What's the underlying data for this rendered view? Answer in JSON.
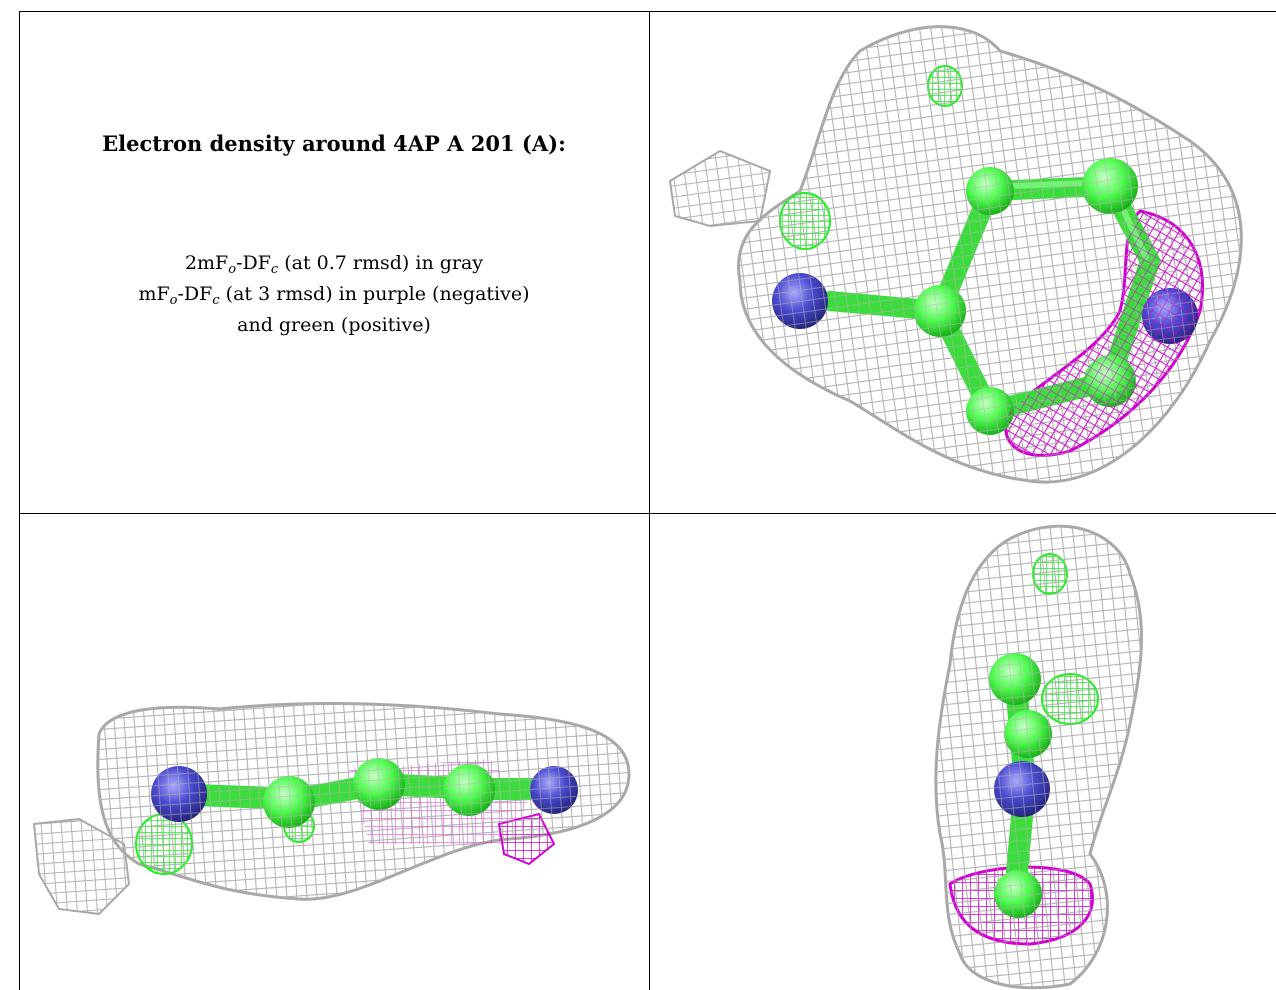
{
  "panel": {
    "title": "Electron density around 4AP A 201 (A):",
    "line1": {
      "prefix": "2mF",
      "o": "o",
      "mid": "-DF",
      "c": "c",
      "suffix": " (at 0.7 rmsd) in gray"
    },
    "line2": {
      "prefix": "mF",
      "o": "o",
      "mid": "-DF",
      "c": "c",
      "suffix": " (at 3 rmsd) in purple (negative)"
    },
    "line3": "and green (positive)"
  },
  "colors": {
    "mesh_2fofc": "#b4b4b4",
    "negative_density": "#d000d0",
    "positive_density": "#22ee22",
    "carbon": "#50ff50",
    "nitrogen": "#4a4ad0",
    "border": "#000000"
  },
  "views": [
    "view-top-down",
    "view-side",
    "view-end-on"
  ]
}
